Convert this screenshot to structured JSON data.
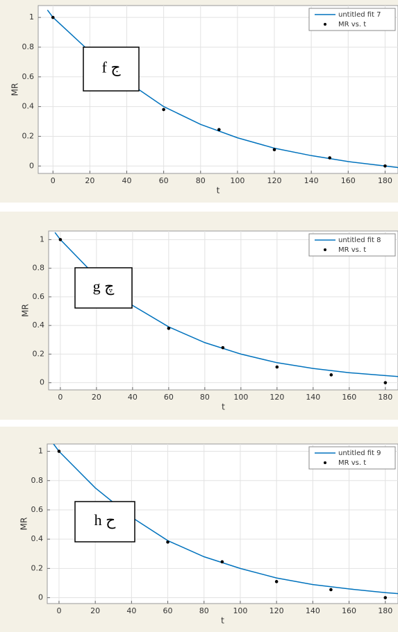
{
  "chart_data": [
    {
      "type": "scatter",
      "xlabel": "t",
      "ylabel": "MR",
      "annotation": "f ج",
      "xlim": [
        -8,
        187
      ],
      "ylim": [
        -0.05,
        1.08
      ],
      "xticks": [
        0,
        20,
        40,
        60,
        80,
        100,
        120,
        140,
        160,
        180
      ],
      "yticks": [
        0,
        0.2,
        0.4,
        0.6,
        0.8,
        1
      ],
      "grid": true,
      "legend": "upper right",
      "series": [
        {
          "name": "untitled fit 7",
          "kind": "line",
          "color": "#0072bd",
          "x": [
            -3,
            0,
            20,
            40,
            60,
            80,
            100,
            120,
            140,
            160,
            180,
            190
          ],
          "values": [
            1.05,
            1.0,
            0.77,
            0.57,
            0.4,
            0.28,
            0.19,
            0.12,
            0.07,
            0.03,
            0.0,
            -0.015
          ]
        },
        {
          "name": "MR vs. t",
          "kind": "points",
          "color": "#000000",
          "x": [
            0,
            60,
            90,
            120,
            150,
            180
          ],
          "values": [
            1.0,
            0.38,
            0.245,
            0.11,
            0.055,
            0.0
          ]
        }
      ]
    },
    {
      "type": "scatter",
      "xlabel": "t",
      "ylabel": "MR",
      "annotation": "g چ",
      "xlim": [
        -6.5,
        187
      ],
      "ylim": [
        -0.05,
        1.06
      ],
      "xticks": [
        0,
        20,
        40,
        60,
        80,
        100,
        120,
        140,
        160,
        180
      ],
      "yticks": [
        0,
        0.2,
        0.4,
        0.6,
        0.8,
        1
      ],
      "grid": true,
      "legend": "upper right",
      "series": [
        {
          "name": "untitled fit 8",
          "kind": "line",
          "color": "#0072bd",
          "x": [
            -3,
            0,
            20,
            40,
            60,
            80,
            100,
            120,
            140,
            160,
            180,
            190
          ],
          "values": [
            1.05,
            1.0,
            0.74,
            0.54,
            0.39,
            0.28,
            0.2,
            0.14,
            0.1,
            0.07,
            0.05,
            0.04
          ]
        },
        {
          "name": "MR vs. t",
          "kind": "points",
          "color": "#000000",
          "x": [
            0,
            60,
            90,
            120,
            150,
            180
          ],
          "values": [
            1.0,
            0.38,
            0.245,
            0.11,
            0.055,
            0.0
          ]
        }
      ]
    },
    {
      "type": "scatter",
      "xlabel": "t",
      "ylabel": "MR",
      "annotation": "h ح",
      "xlim": [
        -6.5,
        187
      ],
      "ylim": [
        -0.04,
        1.05
      ],
      "xticks": [
        0,
        20,
        40,
        60,
        80,
        100,
        120,
        140,
        160,
        180
      ],
      "yticks": [
        0,
        0.2,
        0.4,
        0.6,
        0.8,
        1
      ],
      "grid": true,
      "legend": "upper right",
      "series": [
        {
          "name": "untitled fit 9",
          "kind": "line",
          "color": "#0072bd",
          "x": [
            -3,
            0,
            20,
            40,
            60,
            80,
            100,
            120,
            140,
            160,
            180,
            190
          ],
          "values": [
            1.05,
            1.0,
            0.75,
            0.55,
            0.39,
            0.28,
            0.2,
            0.135,
            0.09,
            0.06,
            0.035,
            0.025
          ]
        },
        {
          "name": "MR vs. t",
          "kind": "points",
          "color": "#000000",
          "x": [
            0,
            60,
            90,
            120,
            150,
            180
          ],
          "values": [
            1.0,
            0.38,
            0.245,
            0.11,
            0.055,
            0.0
          ]
        }
      ]
    }
  ]
}
